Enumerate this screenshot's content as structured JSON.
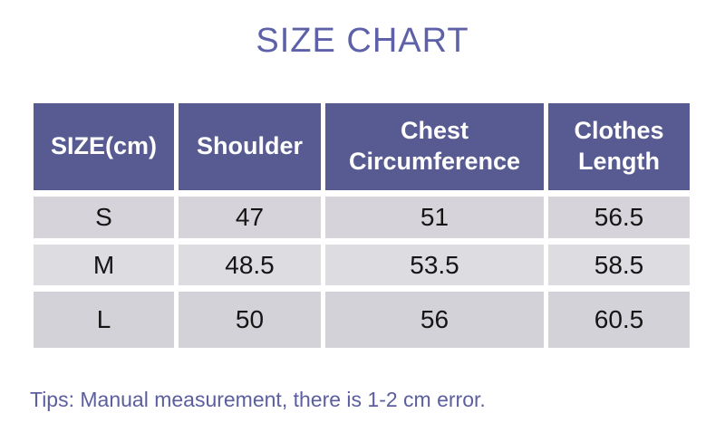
{
  "page": {
    "title": "SIZE CHART",
    "tips": "Tips: Manual measurement, there is 1-2 cm error."
  },
  "colors": {
    "header_background": "#575b91",
    "header_text": "#ffffff",
    "title_text": "#5e61a8",
    "tips_text": "#5b5f9f",
    "row_s_background": "#d6d4da",
    "row_m_background": "#dddce1",
    "row_l_background": "#d3d2d8",
    "cell_text": "#151515",
    "page_background": "#ffffff"
  },
  "chart_data": {
    "type": "table",
    "title": "SIZE CHART",
    "columns": [
      "SIZE(cm)",
      "Shoulder",
      "Chest Circumference",
      "Clothes Length"
    ],
    "rows": [
      [
        "S",
        "47",
        "51",
        "56.5"
      ],
      [
        "M",
        "48.5",
        "53.5",
        "58.5"
      ],
      [
        "L",
        "50",
        "56",
        "60.5"
      ]
    ],
    "footnote": "Tips: Manual measurement, there is 1-2 cm error."
  }
}
